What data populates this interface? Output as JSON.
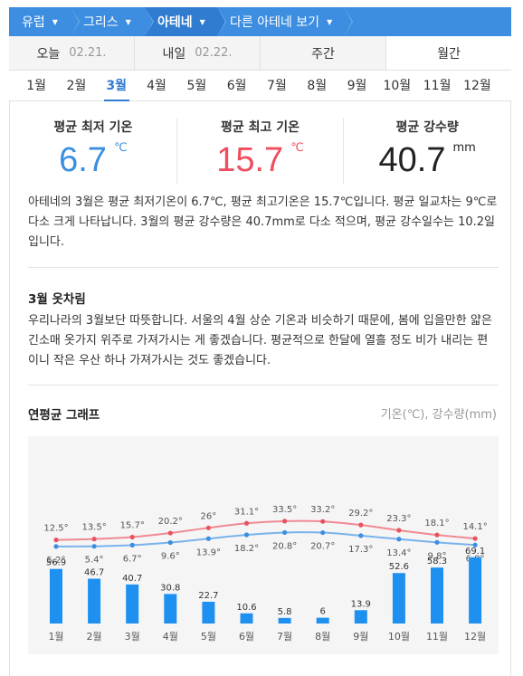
{
  "breadcrumb": [
    {
      "label": "유럽"
    },
    {
      "label": "그리스"
    },
    {
      "label": "아테네"
    },
    {
      "label": "다른 아테네 보기"
    }
  ],
  "day_tabs": [
    {
      "label": "오늘",
      "date": "02.21."
    },
    {
      "label": "내일",
      "date": "02.22."
    },
    {
      "label": "주간"
    },
    {
      "label": "월간"
    }
  ],
  "months": [
    "1월",
    "2월",
    "3월",
    "4월",
    "5월",
    "6월",
    "7월",
    "8월",
    "9월",
    "10월",
    "11월",
    "12월"
  ],
  "selected_month_index": 2,
  "stats": [
    {
      "title": "평균 최저 기온",
      "value": "6.7",
      "unit": "℃",
      "color": "#3b8fe0"
    },
    {
      "title": "평균 최고 기온",
      "value": "15.7",
      "unit": "℃",
      "color": "#ee4f5f"
    },
    {
      "title": "평균 강수량",
      "value": "40.7",
      "unit": "mm",
      "color": "#222222"
    }
  ],
  "description": "아테네의 3월은 평균 최저기온이 6.7℃, 평균 최고기온은 15.7℃입니다. 평균 일교차는 9℃로 다소 크게 나타납니다. 3월의 평균 강수량은 40.7mm로 다소 적으며, 평균 강수일수는 10.2일입니다.",
  "clothes": {
    "title": "3월 옷차림",
    "text": "우리나라의 3월보단 따뜻합니다. 서울의 4월 상순 기온과 비슷하기 때문에, 봄에 입을만한 얇은 긴소매 옷가지 위주로 가져가시는 게 좋겠습니다. 평균적으로 한달에 열흘 정도 비가 내리는 편이니 작은 우산 하나 가져가시는 것도 좋겠습니다."
  },
  "graph": {
    "title": "연평균 그래프",
    "unit_note": "기온(℃), 강수량(mm)"
  },
  "chart_data": {
    "type": "line",
    "categories": [
      "1월",
      "2월",
      "3월",
      "4월",
      "5월",
      "6월",
      "7월",
      "8월",
      "9월",
      "10월",
      "11월",
      "12월"
    ],
    "series": [
      {
        "values": [
          12.5,
          13.5,
          15.7,
          20.2,
          26,
          31.1,
          33.5,
          33.2,
          29.2,
          23.3,
          18.1,
          14.1
        ],
        "labels": [
          "12.5°",
          "13.5°",
          "15.7°",
          "20.2°",
          "26°",
          "31.1°",
          "33.5°",
          "33.2°",
          "29.2°",
          "23.3°",
          "18.1°",
          "14.1°"
        ],
        "color": "#f08a94"
      },
      {
        "values": [
          5.2,
          5.4,
          6.7,
          9.6,
          13.9,
          18.2,
          20.8,
          20.7,
          17.3,
          13.4,
          9.8,
          6.8
        ],
        "labels": [
          "5.2°",
          "5.4°",
          "6.7°",
          "9.6°",
          "13.9°",
          "18.2°",
          "20.8°",
          "20.7°",
          "17.3°",
          "13.4°",
          "9.8°",
          "6.8°"
        ],
        "color": "#7ab2ec"
      }
    ],
    "bars": {
      "type": "bar",
      "values": [
        56.9,
        46.7,
        40.7,
        30.8,
        22.7,
        10.6,
        5.8,
        6,
        13.9,
        52.6,
        58.3,
        69.1
      ],
      "labels": [
        "56.9",
        "46.7",
        "40.7",
        "30.8",
        "22.7",
        "10.6",
        "5.8",
        "6",
        "13.9",
        "52.6",
        "58.3",
        "69.1"
      ],
      "color": "#1e90f0"
    }
  }
}
